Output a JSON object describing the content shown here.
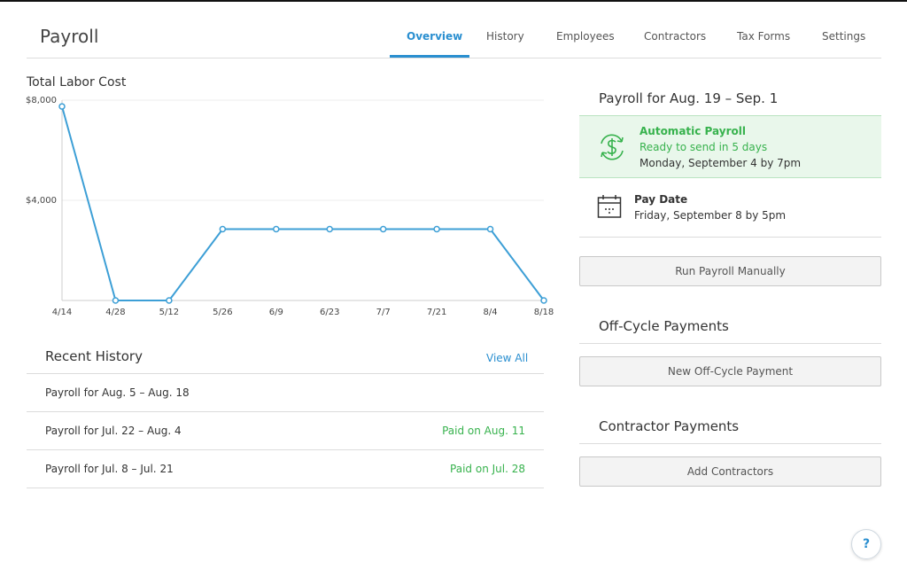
{
  "header": {
    "title": "Payroll",
    "tabs": [
      "Overview",
      "History",
      "Employees",
      "Contractors",
      "Tax Forms",
      "Settings"
    ],
    "active_tab": 0
  },
  "chart_data": {
    "type": "line",
    "title": "Total Labor Cost",
    "categories": [
      "4/14",
      "4/28",
      "5/12",
      "5/26",
      "6/9",
      "6/23",
      "7/7",
      "7/21",
      "8/4",
      "8/18"
    ],
    "values": [
      7750,
      0,
      0,
      2850,
      2850,
      2850,
      2850,
      2850,
      2850,
      0
    ],
    "color": "#3d9fd6",
    "ylim": [
      0,
      8000
    ],
    "yticks": [
      {
        "value": 4000,
        "label": "$4,000"
      },
      {
        "value": 8000,
        "label": "$8,000"
      }
    ],
    "grid": true
  },
  "recent_history": {
    "title": "Recent History",
    "view_all": "View All",
    "rows": [
      {
        "label": "Payroll for Aug. 5 – Aug. 18"
      },
      {
        "label": "Payroll for Jul. 22 – Aug. 4",
        "status": "Paid on Aug. 11"
      },
      {
        "label": "Payroll for Jul. 8 – Jul. 21",
        "status": "Paid on Jul. 28"
      }
    ]
  },
  "pay_period": {
    "title": "Payroll for Aug. 19 – Sep. 1",
    "automatic": {
      "title": "Automatic Payroll",
      "status": "Ready to send in 5 days",
      "detail": "Monday, September 4 by 7pm"
    },
    "pay_date": {
      "title": "Pay Date",
      "detail": "Friday, September 8 by 5pm"
    },
    "button": "Run Payroll Manually"
  },
  "off_cycle": {
    "title": "Off-Cycle Payments",
    "button": "New Off-Cycle Payment"
  },
  "contractors": {
    "title": "Contractor Payments",
    "button": "Add Contractors"
  },
  "help": "?"
}
